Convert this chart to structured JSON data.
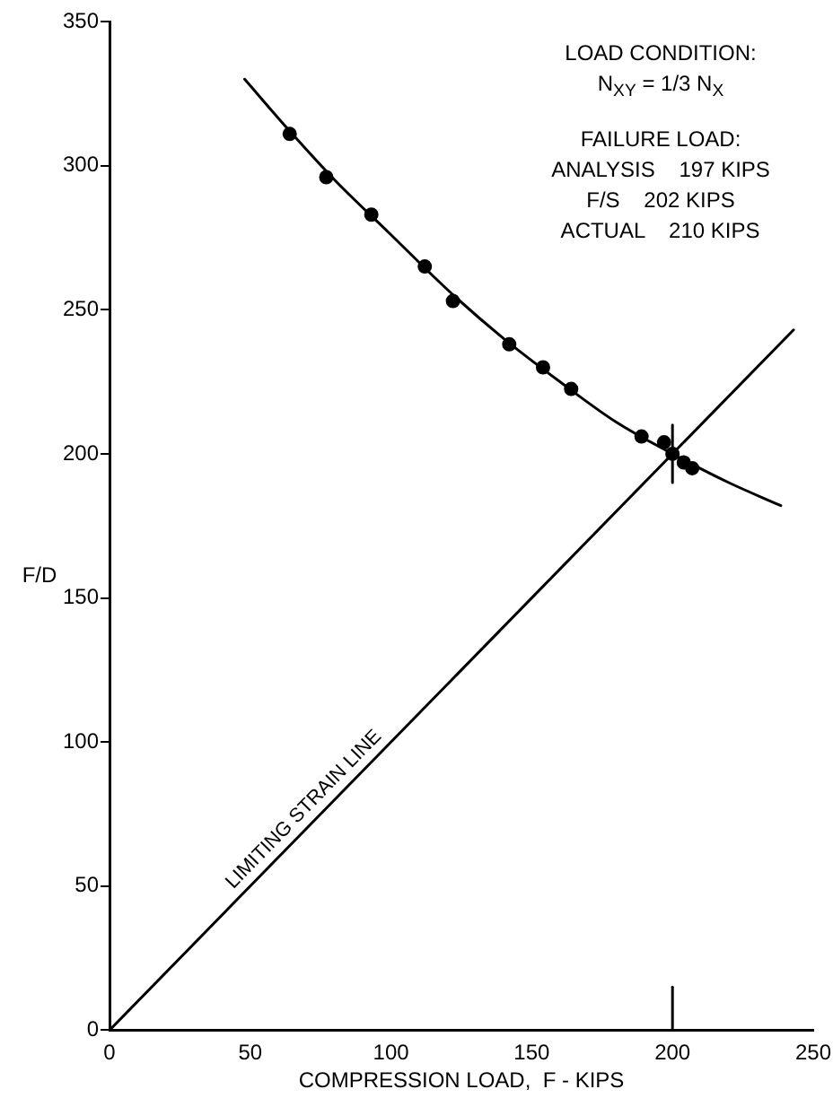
{
  "chart_data": {
    "type": "scatter",
    "xlabel": "COMPRESSION LOAD,  F - KIPS",
    "ylabel": "F/D",
    "xlim": [
      0,
      250
    ],
    "xticks": [
      0,
      50,
      100,
      150,
      200,
      250
    ],
    "ylim": [
      0,
      350
    ],
    "yticks": [
      0,
      50,
      100,
      150,
      200,
      250,
      300,
      350
    ],
    "grid": false,
    "legend": false,
    "annotations": [
      "LOAD CONDITION:",
      "N$_{XY}$ = 1/3 N$_{X}$",
      "FAILURE LOAD:",
      "ANALYSIS    197 KIPS",
      "F/S    202 KIPS",
      "ACTUAL    210 KIPS"
    ],
    "series": [
      {
        "marker": "circle",
        "color": "#000000",
        "x": [
          64,
          77,
          93,
          112,
          122,
          142,
          154,
          164,
          189,
          197,
          200,
          204,
          207
        ],
        "values": [
          311,
          296,
          283,
          265,
          253,
          238,
          230,
          222.5,
          206,
          204,
          200,
          197,
          195
        ]
      },
      {
        "type": "line",
        "marker": "none",
        "color": "#000000",
        "x": [
          48,
          64,
          80,
          100,
          120,
          140,
          160,
          180,
          200,
          220,
          238.5
        ],
        "values": [
          330,
          312,
          295,
          276,
          257,
          240,
          225,
          211,
          200,
          190,
          182
        ]
      },
      {
        "type": "line",
        "marker": "none",
        "name": "LIMITING STRAIN LINE",
        "color": "#000000",
        "x": [
          0,
          243
        ],
        "values": [
          0,
          243
        ]
      },
      {
        "type": "line",
        "marker": "none",
        "color": "#000000",
        "x": [
          200,
          200
        ],
        "values": [
          190,
          210
        ]
      },
      {
        "type": "line",
        "marker": "none",
        "color": "#000000",
        "x": [
          200,
          200
        ],
        "values": [
          0,
          15
        ]
      }
    ]
  }
}
